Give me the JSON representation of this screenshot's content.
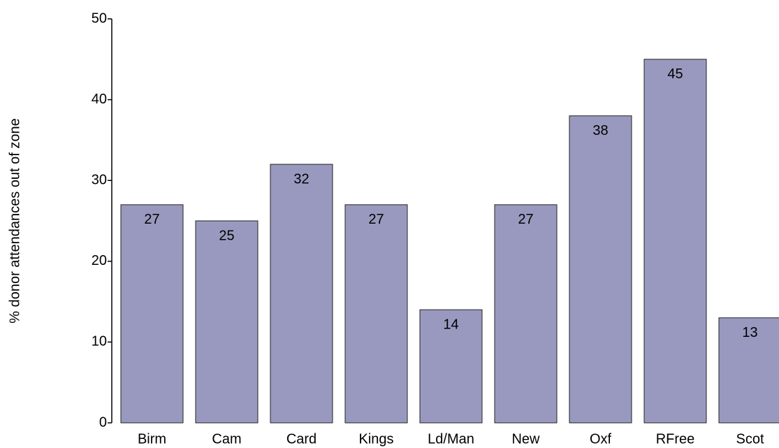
{
  "chart_data": {
    "type": "bar",
    "y_label": "% donor attendances out of zone",
    "categories": [
      "Birm",
      "Cam",
      "Card",
      "Kings",
      "Ld/Man",
      "New",
      "Oxf",
      "RFree",
      "Scot"
    ],
    "values": [
      27,
      25,
      32,
      27,
      14,
      27,
      38,
      45,
      13
    ],
    "color": "#9999c0",
    "ylim": [
      0,
      50
    ],
    "yticks": [
      0,
      10,
      20,
      30,
      40,
      50
    ],
    "grid": false
  }
}
